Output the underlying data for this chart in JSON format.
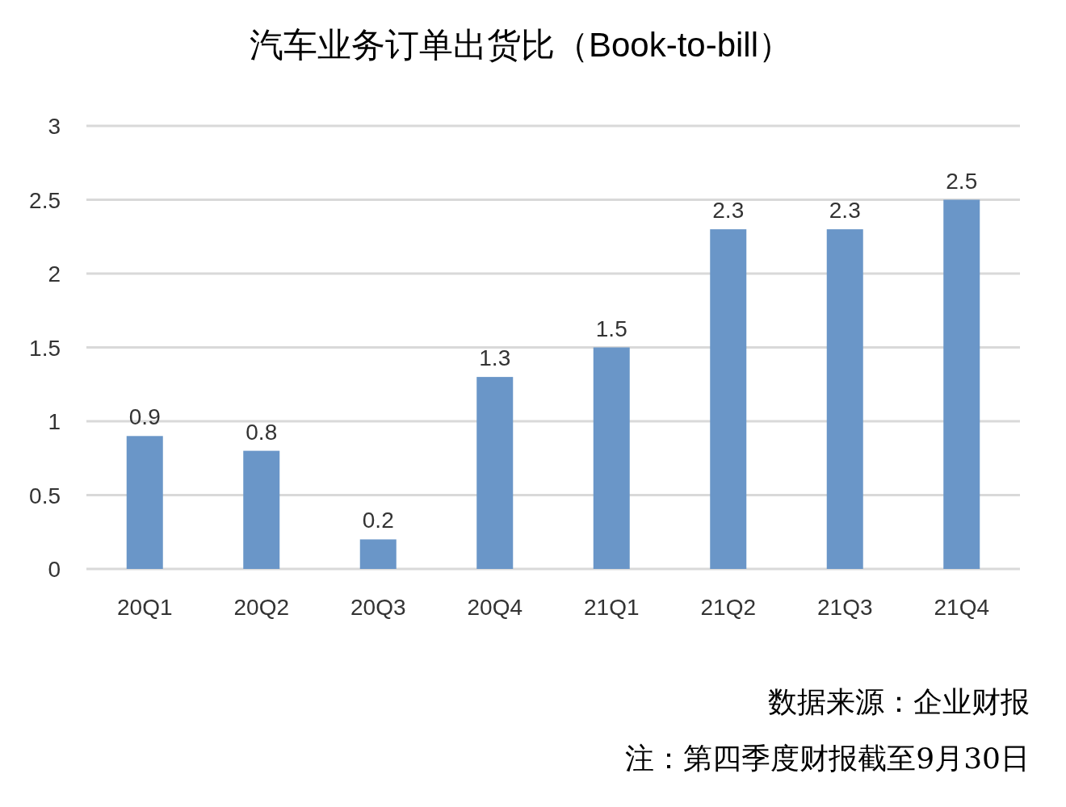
{
  "chart_data": {
    "type": "bar",
    "title": "汽车业务订单出货比（Book-to-bill）",
    "categories": [
      "20Q1",
      "20Q2",
      "20Q3",
      "20Q4",
      "21Q1",
      "21Q2",
      "21Q3",
      "21Q4"
    ],
    "values": [
      0.9,
      0.8,
      0.2,
      1.3,
      1.5,
      2.3,
      2.3,
      2.5
    ],
    "color": "#6a96c8",
    "ylim": [
      0,
      3
    ],
    "yticks": [
      0,
      0.5,
      1,
      1.5,
      2,
      2.5,
      3
    ],
    "grid": "y",
    "data_labels": true,
    "annotations": [
      "数据来源：企业财报",
      "注：第四季度财报截至9月30日"
    ]
  }
}
